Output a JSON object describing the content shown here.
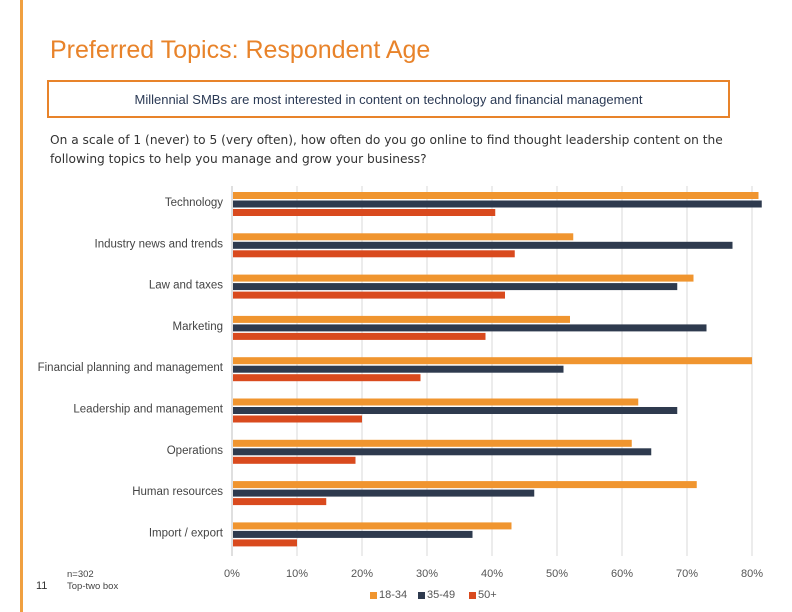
{
  "header": {
    "title": "Preferred Topics: Respondent Age",
    "callout": "Millennial SMBs are most interested in content on technology and financial management",
    "question": "On a scale of 1 (never) to 5 (very often), how often do you go online to find thought leadership content on the following topics to help you manage and grow your business?"
  },
  "footer": {
    "page_number": "11",
    "sample": "n=302",
    "note": "Top-two box"
  },
  "colors": {
    "accent": "#e8832a",
    "series_18_34": "#f0952f",
    "series_35_49": "#2e3a4e",
    "series_50_plus": "#d94a1e",
    "grid": "#d9d9d9"
  },
  "chart_data": {
    "type": "bar",
    "orientation": "horizontal",
    "categories": [
      "Technology",
      "Industry news and trends",
      "Law and taxes",
      "Marketing",
      "Financial planning and management",
      "Leadership and management",
      "Operations",
      "Human resources",
      "Import / export"
    ],
    "series": [
      {
        "name": "18-34",
        "values": [
          81,
          52.5,
          71,
          52,
          80,
          62.5,
          61.5,
          71.5,
          43
        ]
      },
      {
        "name": "35-49",
        "values": [
          81.5,
          77,
          68.5,
          73,
          51,
          68.5,
          64.5,
          46.5,
          37
        ]
      },
      {
        "name": "50+",
        "values": [
          40.5,
          43.5,
          42,
          39,
          29,
          20,
          19,
          14.5,
          10
        ]
      }
    ],
    "x_ticks": [
      "0%",
      "10%",
      "20%",
      "30%",
      "40%",
      "50%",
      "60%",
      "70%",
      "80%"
    ],
    "xlim": [
      0,
      82
    ],
    "title": "",
    "xlabel": "",
    "ylabel": "",
    "grid": "vertical",
    "legend_position": "bottom"
  }
}
